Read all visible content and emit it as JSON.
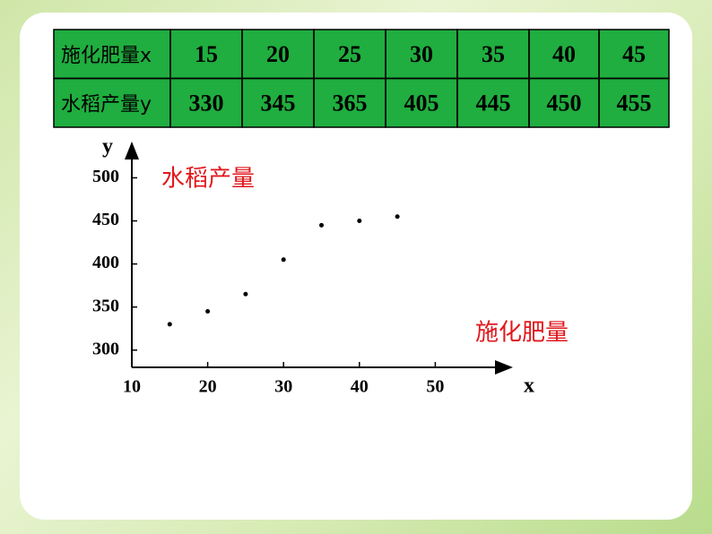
{
  "table": {
    "rows": [
      [
        "施化肥量x",
        15,
        20,
        25,
        30,
        35,
        40,
        45
      ],
      [
        "水稻产量y",
        330,
        345,
        365,
        405,
        445,
        450,
        455
      ]
    ]
  },
  "chart_data": {
    "type": "scatter",
    "x_label": "x",
    "y_label": "y",
    "annotations": [
      "水稻产量",
      "施化肥量"
    ],
    "x": [
      15,
      20,
      25,
      30,
      35,
      40,
      45
    ],
    "values": [
      330,
      345,
      365,
      405,
      445,
      450,
      455
    ],
    "color": "#000000",
    "xlim": [
      10,
      60
    ],
    "xticks": [
      10,
      20,
      30,
      40,
      50
    ],
    "ylim": [
      280,
      540
    ],
    "yticks": [
      300,
      350,
      400,
      450,
      500
    ]
  }
}
